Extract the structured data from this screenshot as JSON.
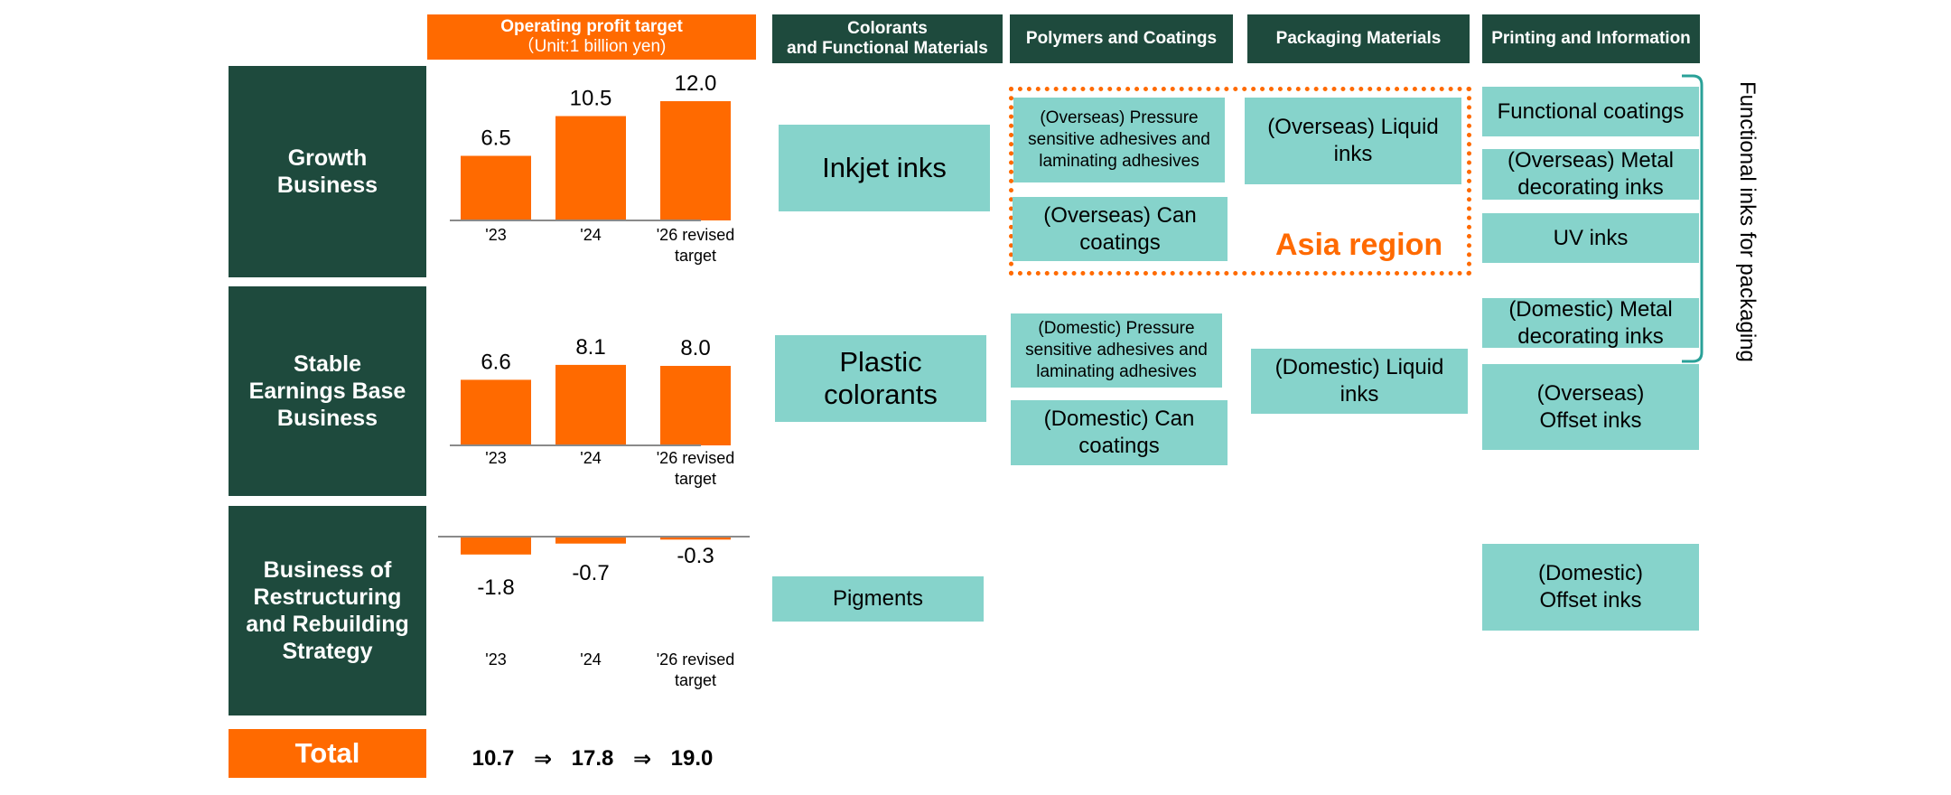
{
  "header": {
    "op_title": "Operating profit target",
    "op_unit": "（Unit:1 billion yen)",
    "columns": [
      "Colorants\nand Functional Materials",
      "Polymers and Coatings",
      "Packaging Materials",
      "Printing and Information"
    ]
  },
  "rows": [
    {
      "label": "Growth\nBusiness"
    },
    {
      "label": "Stable\nEarnings Base\nBusiness"
    },
    {
      "label": "Business of\nRestructuring\nand Rebuilding\nStrategy"
    }
  ],
  "total": {
    "label": "Total",
    "values": [
      "10.7",
      "17.8",
      "19.0"
    ],
    "arrow": "⇒"
  },
  "chart_data": [
    {
      "type": "bar",
      "row": "Growth Business",
      "categories": [
        "'23",
        "'24",
        "'26 revised target"
      ],
      "values": [
        6.5,
        10.5,
        12.0
      ],
      "value_labels": [
        "6.5",
        "10.5",
        "12.0"
      ],
      "unit": "1 billion yen",
      "color": "#ff6a00"
    },
    {
      "type": "bar",
      "row": "Stable Earnings Base Business",
      "categories": [
        "'23",
        "'24",
        "'26 revised target"
      ],
      "values": [
        6.6,
        8.1,
        8.0
      ],
      "value_labels": [
        "6.6",
        "8.1",
        "8.0"
      ],
      "unit": "1 billion yen",
      "color": "#ff6a00"
    },
    {
      "type": "bar",
      "row": "Business of Restructuring and Rebuilding Strategy",
      "categories": [
        "'23",
        "'24",
        "'26 revised target"
      ],
      "values": [
        -1.8,
        -0.7,
        -0.3
      ],
      "value_labels": [
        "-1.8",
        "-0.7",
        "-0.3"
      ],
      "unit": "1 billion yen",
      "color": "#ff6a00"
    }
  ],
  "tick_labels": {
    "growth": [
      "'23",
      "'24",
      "'26 revised",
      "target"
    ],
    "stable": [
      "'23",
      "'24",
      "'26 revised",
      "target"
    ],
    "restructuring": [
      "'23",
      "'24",
      "'26 revised",
      "target"
    ]
  },
  "boxes": {
    "inkjet_inks": "Inkjet inks",
    "plastic_colorants": "Plastic colorants",
    "pigments": "Pigments",
    "overseas_psa": "(Overseas) Pressure\nsensitive adhesives and\nlaminating adhesives",
    "overseas_can": "(Overseas) Can\ncoatings",
    "domestic_psa": "(Domestic) Pressure\nsensitive adhesives and\nlaminating adhesives",
    "domestic_can": "(Domestic) Can\ncoatings",
    "overseas_liquid": "(Overseas) Liquid\ninks",
    "domestic_liquid": "(Domestic) Liquid\ninks",
    "functional_coatings": "Functional coatings",
    "overseas_metal": "(Overseas) Metal\ndecorating inks",
    "uv_inks": "UV inks",
    "domestic_metal": "(Domestic) Metal\ndecorating inks",
    "overseas_offset": "(Overseas)\nOffset inks",
    "domestic_offset": "(Domestic)\nOffset inks"
  },
  "asia_region_label": "Asia region",
  "side_label": "Functional inks for packaging",
  "colors": {
    "dark_green": "#1e4a3d",
    "orange": "#ff6a00",
    "teal": "#86d3cb",
    "bracket": "#2aa198"
  }
}
